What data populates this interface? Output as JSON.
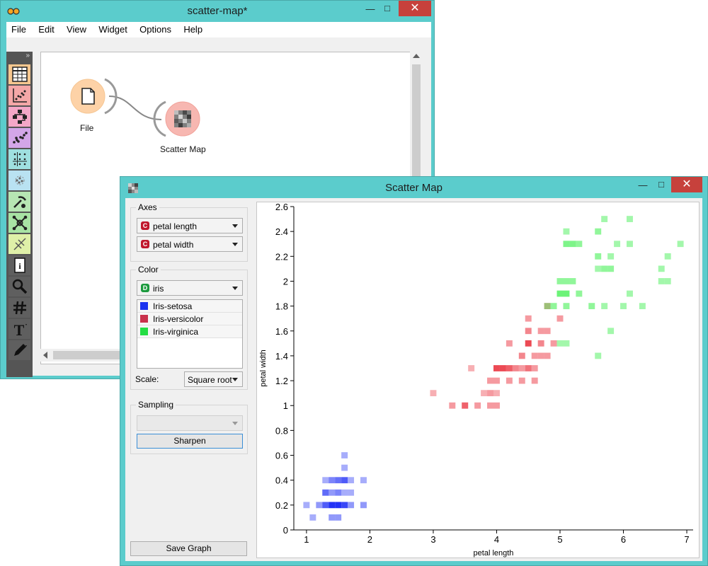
{
  "main_window": {
    "title": "scatter-map*",
    "menu": [
      "File",
      "Edit",
      "View",
      "Widget",
      "Options",
      "Help"
    ],
    "toolbox_expand": "»",
    "nodes": [
      {
        "label": "File",
        "icon": "file-icon"
      },
      {
        "label": "Scatter Map",
        "icon": "scatter-map-icon"
      }
    ]
  },
  "dialog": {
    "title": "Scatter Map",
    "axes": {
      "title": "Axes",
      "x": {
        "type": "C",
        "value": "petal length"
      },
      "y": {
        "type": "C",
        "value": "petal width"
      }
    },
    "color": {
      "title": "Color",
      "attribute": {
        "type": "D",
        "value": "iris"
      },
      "classes": [
        {
          "label": "Iris-setosa",
          "color": "#1f2fff"
        },
        {
          "label": "Iris-versicolor",
          "color": "#d0304c"
        },
        {
          "label": "Iris-virginica",
          "color": "#22dd44"
        }
      ],
      "scale_label": "Scale:",
      "scale_value": "Square root"
    },
    "sampling": {
      "title": "Sampling",
      "value": "",
      "button": "Sharpen"
    },
    "save_button": "Save Graph"
  },
  "chart_data": {
    "type": "heatmap",
    "xlabel": "petal length",
    "ylabel": "petal width",
    "xlim": [
      0.8,
      7.1
    ],
    "ylim": [
      0,
      2.6
    ],
    "xticks": [
      1,
      2,
      3,
      4,
      5,
      6,
      7
    ],
    "yticks": [
      0,
      0.2,
      0.4,
      0.6,
      0.8,
      1,
      1.2,
      1.4,
      1.6,
      1.8,
      2,
      2.2,
      2.4,
      2.6
    ],
    "ytick_labels": [
      "0",
      "0.2",
      "0.4",
      "0.6",
      "0.8",
      "1",
      "1.2",
      "1.4",
      "1.6",
      "1.8",
      "2",
      "2.2",
      "2.4",
      "2.6"
    ],
    "series": [
      {
        "name": "Iris-setosa",
        "color": "#0b1cf5",
        "cells": [
          [
            1.1,
            0.1
          ],
          [
            1.4,
            0.1
          ],
          [
            1.5,
            0.1
          ],
          [
            1.0,
            0.2
          ],
          [
            1.2,
            0.2
          ],
          [
            1.3,
            0.2
          ],
          [
            1.4,
            0.2
          ],
          [
            1.5,
            0.2
          ],
          [
            1.6,
            0.2
          ],
          [
            1.7,
            0.2
          ],
          [
            1.9,
            0.2
          ],
          [
            1.5,
            0.3
          ],
          [
            1.4,
            0.3
          ],
          [
            1.3,
            0.3
          ],
          [
            1.7,
            0.3
          ],
          [
            1.4,
            0.4
          ],
          [
            1.5,
            0.4
          ],
          [
            1.6,
            0.4
          ],
          [
            1.7,
            0.4
          ],
          [
            1.9,
            0.4
          ],
          [
            1.3,
            0.4
          ],
          [
            1.6,
            0.5
          ],
          [
            1.6,
            0.6
          ],
          [
            1.3,
            0.3
          ],
          [
            1.6,
            0.3
          ]
        ],
        "weights": [
          0.4,
          0.5,
          0.5,
          0.4,
          0.5,
          0.8,
          1,
          1,
          0.9,
          0.5,
          0.5,
          0.6,
          0.5,
          0.4,
          0.4,
          0.6,
          0.7,
          0.8,
          0.4,
          0.4,
          0.4,
          0.4,
          0.4,
          0.5,
          0.4
        ]
      },
      {
        "name": "Iris-versicolor",
        "color": "#e8202c",
        "cells": [
          [
            3.0,
            1.1
          ],
          [
            3.3,
            1.0
          ],
          [
            3.5,
            1.0
          ],
          [
            3.7,
            1.0
          ],
          [
            3.9,
            1.0
          ],
          [
            4.0,
            1.0
          ],
          [
            3.8,
            1.1
          ],
          [
            3.9,
            1.1
          ],
          [
            3.6,
            1.3
          ],
          [
            3.9,
            1.2
          ],
          [
            4.0,
            1.2
          ],
          [
            4.2,
            1.2
          ],
          [
            4.4,
            1.2
          ],
          [
            4.6,
            1.2
          ],
          [
            4.0,
            1.3
          ],
          [
            4.1,
            1.3
          ],
          [
            4.2,
            1.3
          ],
          [
            4.3,
            1.3
          ],
          [
            4.4,
            1.3
          ],
          [
            4.5,
            1.3
          ],
          [
            4.6,
            1.3
          ],
          [
            4.7,
            1.4
          ],
          [
            4.4,
            1.4
          ],
          [
            4.6,
            1.4
          ],
          [
            4.8,
            1.4
          ],
          [
            4.7,
            1.5
          ],
          [
            4.5,
            1.5
          ],
          [
            4.9,
            1.5
          ],
          [
            4.2,
            1.5
          ],
          [
            4.5,
            1.6
          ],
          [
            4.8,
            1.6
          ],
          [
            4.7,
            1.6
          ],
          [
            5.0,
            1.7
          ],
          [
            4.8,
            1.8
          ],
          [
            4.5,
            1.7
          ],
          [
            3.5,
            1.0
          ],
          [
            4.0,
            1.1
          ]
        ],
        "weights": [
          0.4,
          0.5,
          0.5,
          0.5,
          0.5,
          0.5,
          0.4,
          0.5,
          0.4,
          0.5,
          0.5,
          0.5,
          0.5,
          0.5,
          0.9,
          0.9,
          0.8,
          0.6,
          0.5,
          0.7,
          0.5,
          0.5,
          0.6,
          0.5,
          0.5,
          0.6,
          0.9,
          0.5,
          0.5,
          0.6,
          0.5,
          0.5,
          0.5,
          0.5,
          0.5,
          0.5,
          0.4
        ]
      },
      {
        "name": "Iris-virginica",
        "color": "#33ee44",
        "cells": [
          [
            5.6,
            1.4
          ],
          [
            4.8,
            1.8
          ],
          [
            4.9,
            1.8
          ],
          [
            5.1,
            1.8
          ],
          [
            5.5,
            1.8
          ],
          [
            5.7,
            1.8
          ],
          [
            6.0,
            1.8
          ],
          [
            6.3,
            1.8
          ],
          [
            5.0,
            1.9
          ],
          [
            5.1,
            1.9
          ],
          [
            5.3,
            1.9
          ],
          [
            5.0,
            1.5
          ],
          [
            5.1,
            1.5
          ],
          [
            5.0,
            2.0
          ],
          [
            5.1,
            2.0
          ],
          [
            5.2,
            2.0
          ],
          [
            6.1,
            1.9
          ],
          [
            6.6,
            2.0
          ],
          [
            6.7,
            2.0
          ],
          [
            5.6,
            2.1
          ],
          [
            5.7,
            2.1
          ],
          [
            5.8,
            2.1
          ],
          [
            6.6,
            2.1
          ],
          [
            5.6,
            2.2
          ],
          [
            5.8,
            2.2
          ],
          [
            6.7,
            2.2
          ],
          [
            5.1,
            2.3
          ],
          [
            5.2,
            2.3
          ],
          [
            5.3,
            2.3
          ],
          [
            5.9,
            2.3
          ],
          [
            6.1,
            2.3
          ],
          [
            6.9,
            2.3
          ],
          [
            5.1,
            2.4
          ],
          [
            5.6,
            2.4
          ],
          [
            6.1,
            2.5
          ],
          [
            5.7,
            2.5
          ],
          [
            5.8,
            1.6
          ]
        ],
        "weights": [
          0.5,
          0.5,
          0.6,
          0.6,
          0.6,
          0.5,
          0.5,
          0.5,
          0.8,
          0.8,
          0.6,
          0.5,
          0.5,
          0.6,
          0.6,
          0.6,
          0.5,
          0.5,
          0.5,
          0.5,
          0.6,
          0.6,
          0.5,
          0.6,
          0.5,
          0.5,
          0.7,
          0.7,
          0.6,
          0.5,
          0.5,
          0.5,
          0.5,
          0.6,
          0.5,
          0.5,
          0.5
        ]
      }
    ]
  }
}
